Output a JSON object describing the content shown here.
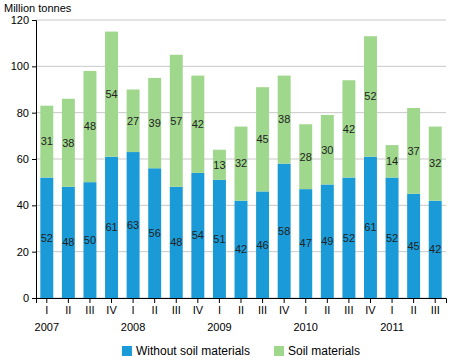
{
  "chart_data": {
    "type": "bar",
    "stacked": true,
    "data_labels": true,
    "grid": true,
    "legend": "bottom",
    "y_label": "Million tonnes",
    "categories": [
      "I",
      "II",
      "III",
      "IV",
      "I",
      "II",
      "III",
      "IV",
      "I",
      "II",
      "III",
      "IV",
      "I",
      "II",
      "III",
      "IV",
      "I",
      "II",
      "III"
    ],
    "year_labels": [
      "2007",
      null,
      null,
      null,
      "2008",
      null,
      null,
      null,
      "2009",
      null,
      null,
      null,
      "2010",
      null,
      null,
      null,
      "2011",
      null,
      null
    ],
    "series": [
      {
        "name": "Without soil materials",
        "color": "#1a9bd7",
        "values": [
          52,
          48,
          50,
          61,
          63,
          56,
          48,
          54,
          51,
          42,
          46,
          58,
          47,
          49,
          52,
          61,
          52,
          45,
          42
        ]
      },
      {
        "name": "Soil materials",
        "color": "#9fd78c",
        "values": [
          31,
          38,
          48,
          54,
          27,
          39,
          57,
          42,
          13,
          32,
          45,
          38,
          28,
          30,
          42,
          52,
          14,
          37,
          32
        ]
      }
    ],
    "ylim": [
      0,
      120
    ],
    "yticks": [
      0,
      20,
      40,
      60,
      80,
      100,
      120
    ]
  }
}
